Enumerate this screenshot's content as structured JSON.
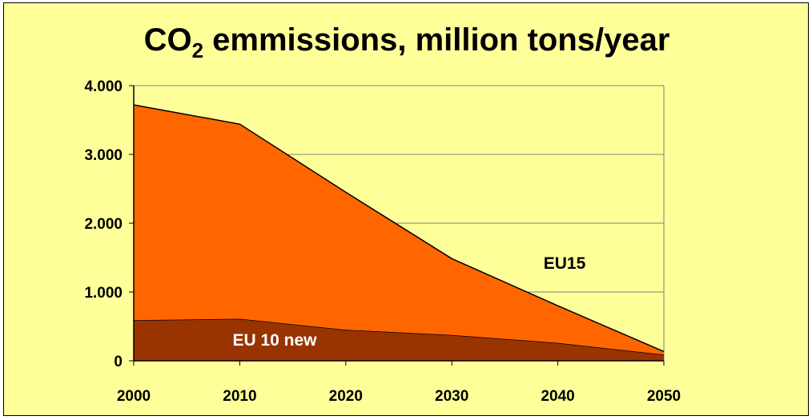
{
  "chart_data": {
    "type": "area",
    "title_main": "CO",
    "title_sub": "2",
    "title_rest": " emmissions, million tons/year",
    "x": [
      "2000",
      "2010",
      "2020",
      "2030",
      "2040",
      "2050"
    ],
    "ylim": [
      0,
      4000
    ],
    "yticks": [
      "0",
      "1.000",
      "2.000",
      "3.000",
      "4.000"
    ],
    "stacked": true,
    "series": [
      {
        "name": "EU 10 new",
        "values": [
          590,
          610,
          450,
          375,
          260,
          90
        ],
        "color": "#993300",
        "label_color": "#ffffff"
      },
      {
        "name": "EU15",
        "values": [
          3130,
          2830,
          2000,
          1110,
          540,
          45
        ],
        "color": "#ff6600",
        "label_color": "#000000"
      }
    ],
    "grid": true,
    "legend": "inline labels"
  }
}
